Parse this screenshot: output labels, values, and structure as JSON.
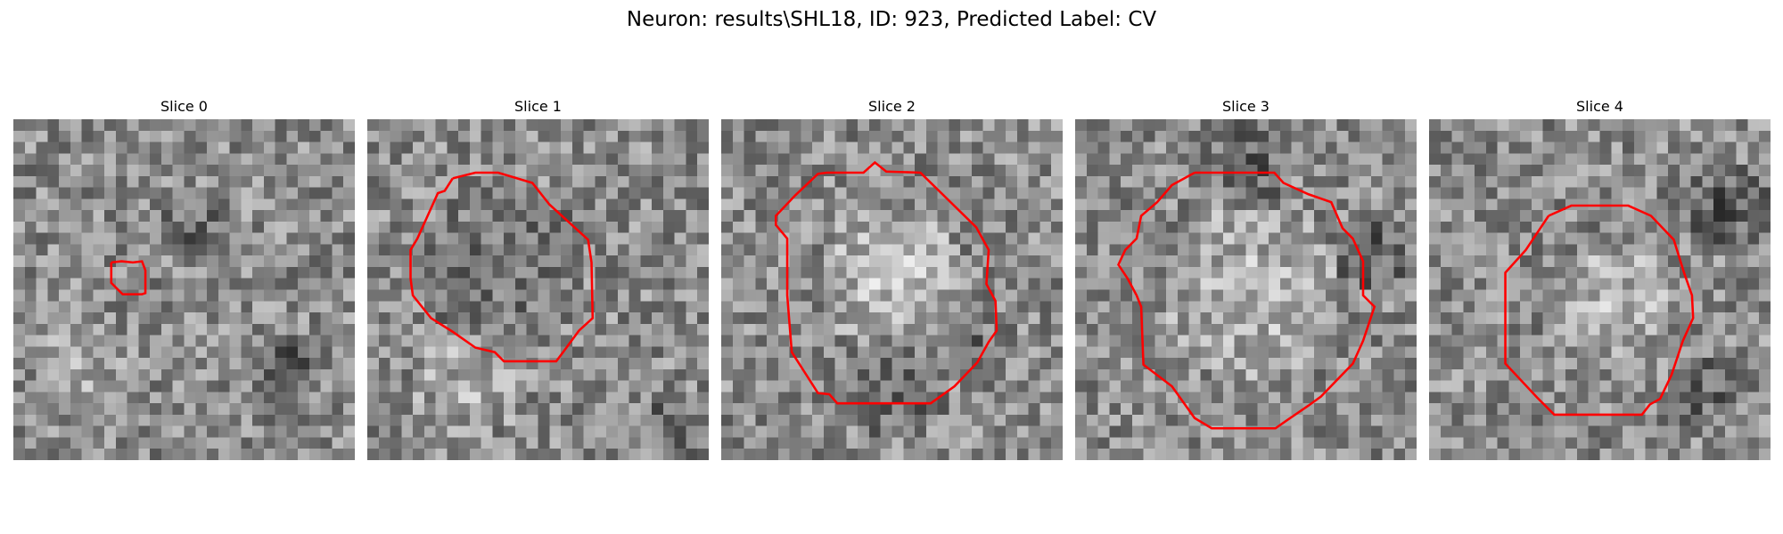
{
  "figure": {
    "title": "Neuron: results\\SHL18, ID: 923, Predicted Label: CV"
  },
  "colors": {
    "contour": "#ff0000",
    "background": "#ffffff"
  },
  "panels": [
    {
      "title": "Slice 0",
      "grid_size": 30,
      "contour": [
        [
          8.6,
          12.6
        ],
        [
          9.5,
          12.5
        ],
        [
          10.5,
          12.6
        ],
        [
          11.3,
          12.5
        ],
        [
          11.6,
          13.3
        ],
        [
          11.6,
          15.3
        ],
        [
          11.3,
          15.4
        ],
        [
          9.6,
          15.4
        ],
        [
          8.6,
          14.4
        ],
        [
          8.6,
          12.6
        ]
      ],
      "seed": 11,
      "features": [
        {
          "cx": 16,
          "cy": 10,
          "r": 3.5,
          "d": -40
        },
        {
          "cx": 24,
          "cy": 22,
          "r": 3,
          "d": -60
        },
        {
          "cx": 6,
          "cy": 22,
          "r": 4,
          "d": 25
        }
      ]
    },
    {
      "title": "Slice 1",
      "grid_size": 30,
      "contour": [
        [
          7.5,
          5.2
        ],
        [
          9.5,
          4.7
        ],
        [
          11.5,
          4.7
        ],
        [
          14.5,
          5.6
        ],
        [
          16,
          7.5
        ],
        [
          19.4,
          10.6
        ],
        [
          19.7,
          12.6
        ],
        [
          19.8,
          17.5
        ],
        [
          18.6,
          18.6
        ],
        [
          17.2,
          20.5
        ],
        [
          16.6,
          21.3
        ],
        [
          12,
          21.3
        ],
        [
          11.2,
          20.5
        ],
        [
          9.5,
          20.1
        ],
        [
          7.5,
          18.7
        ],
        [
          5.6,
          17.5
        ],
        [
          4,
          15.5
        ],
        [
          3.8,
          14
        ],
        [
          3.8,
          11.5
        ],
        [
          4.4,
          10.5
        ],
        [
          5.3,
          8.5
        ],
        [
          6.2,
          6.5
        ],
        [
          6.8,
          6.3
        ],
        [
          7.5,
          5.2
        ]
      ],
      "seed": 23,
      "features": [
        {
          "cx": 12,
          "cy": 13,
          "r": 7.5,
          "d": -28
        },
        {
          "cx": 9,
          "cy": 23,
          "r": 5,
          "d": 35
        },
        {
          "cx": 27,
          "cy": 27,
          "r": 3,
          "d": -45
        }
      ]
    },
    {
      "title": "Slice 2",
      "grid_size": 30,
      "contour": [
        [
          9.3,
          4.7
        ],
        [
          12.5,
          4.7
        ],
        [
          13.5,
          3.8
        ],
        [
          14.5,
          4.6
        ],
        [
          17.5,
          4.7
        ],
        [
          22.4,
          9.5
        ],
        [
          23.5,
          11.5
        ],
        [
          23.3,
          14.5
        ],
        [
          24.1,
          16
        ],
        [
          24.2,
          18.6
        ],
        [
          23.5,
          19.6
        ],
        [
          22.5,
          21.4
        ],
        [
          20.5,
          23.5
        ],
        [
          18.4,
          25
        ],
        [
          10.2,
          25
        ],
        [
          9.5,
          24.2
        ],
        [
          8.5,
          24.1
        ],
        [
          6.2,
          20.5
        ],
        [
          5.8,
          15.5
        ],
        [
          5.8,
          10.5
        ],
        [
          4.8,
          9.3
        ],
        [
          4.8,
          8.5
        ],
        [
          6.5,
          6.7
        ],
        [
          8.5,
          4.8
        ],
        [
          9.3,
          4.7
        ]
      ],
      "seed": 37,
      "features": [
        {
          "cx": 15,
          "cy": 14,
          "r": 6.5,
          "d": 55
        },
        {
          "cx": 15,
          "cy": 23.5,
          "r": 5,
          "d": -40
        },
        {
          "cx": 22,
          "cy": 21,
          "r": 2.5,
          "d": -60
        }
      ]
    },
    {
      "title": "Slice 3",
      "grid_size": 30,
      "contour": [
        [
          10.5,
          4.7
        ],
        [
          17.5,
          4.7
        ],
        [
          18.3,
          5.6
        ],
        [
          20.5,
          6.6
        ],
        [
          22.5,
          7.3
        ],
        [
          23.5,
          9.6
        ],
        [
          24.4,
          10.5
        ],
        [
          25.3,
          12.5
        ],
        [
          25.3,
          15.5
        ],
        [
          26.3,
          16.5
        ],
        [
          25.3,
          19.5
        ],
        [
          24.4,
          21.5
        ],
        [
          21.6,
          24.4
        ],
        [
          20.5,
          25.2
        ],
        [
          18.6,
          26.5
        ],
        [
          17.6,
          27.2
        ],
        [
          12,
          27.2
        ],
        [
          10.5,
          26.3
        ],
        [
          8.5,
          23.5
        ],
        [
          6,
          21.6
        ],
        [
          5.8,
          16.5
        ],
        [
          5.4,
          15.5
        ],
        [
          4.6,
          14
        ],
        [
          3.8,
          12.8
        ],
        [
          4.4,
          11.5
        ],
        [
          5.4,
          10.5
        ],
        [
          5.8,
          8.5
        ],
        [
          7.2,
          7.3
        ],
        [
          8.5,
          5.8
        ],
        [
          10.5,
          4.7
        ]
      ],
      "seed": 53,
      "features": [
        {
          "cx": 15.5,
          "cy": 15.5,
          "r": 8,
          "d": 45
        },
        {
          "cx": 15,
          "cy": 4,
          "r": 4,
          "d": -50
        },
        {
          "cx": 26,
          "cy": 12,
          "r": 3.5,
          "d": -55
        }
      ]
    },
    {
      "title": "Slice 4",
      "grid_size": 30,
      "contour": [
        [
          10.5,
          8.5
        ],
        [
          12.5,
          7.6
        ],
        [
          17.5,
          7.6
        ],
        [
          19.5,
          8.5
        ],
        [
          21.5,
          10.6
        ],
        [
          22.4,
          13.5
        ],
        [
          23.1,
          15.5
        ],
        [
          23.2,
          17.5
        ],
        [
          22.3,
          19.5
        ],
        [
          21.3,
          22.5
        ],
        [
          20.3,
          24.6
        ],
        [
          19.4,
          25.1
        ],
        [
          18.7,
          26
        ],
        [
          11,
          26
        ],
        [
          9.5,
          24.5
        ],
        [
          6.7,
          21.5
        ],
        [
          6.7,
          13.5
        ],
        [
          8.5,
          11.5
        ],
        [
          10.5,
          8.5
        ]
      ],
      "seed": 71,
      "features": [
        {
          "cx": 16,
          "cy": 16,
          "r": 5.5,
          "d": 45
        },
        {
          "cx": 26,
          "cy": 8,
          "r": 4,
          "d": -55
        },
        {
          "cx": 24,
          "cy": 24,
          "r": 3,
          "d": -45
        }
      ]
    }
  ]
}
